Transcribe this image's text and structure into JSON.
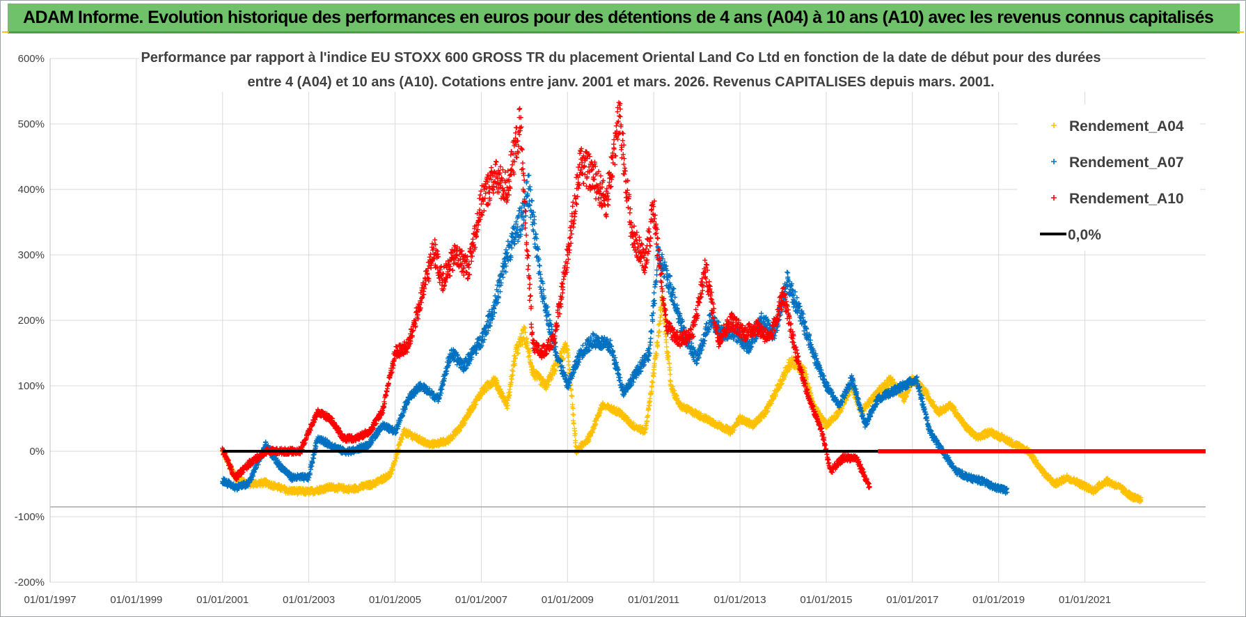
{
  "banner": {
    "title": "ADAM Informe. Evolution historique des performances en euros pour des détentions de 4 ans (A04) à 10 ans (A10) avec les revenus connus capitalisés"
  },
  "colors": {
    "banner": "#6fc26a",
    "a04": "#ffc000",
    "a07": "#0070c0",
    "a10": "#ff0000",
    "zero": "#000000",
    "grid": "#d9d9d9"
  },
  "chart_data": {
    "type": "scatter",
    "title_lines": [
      "Performance par rapport à l'indice EU STOXX 600 GROSS TR  du placement Oriental Land Co Ltd en fonction de la date de début pour des durées",
      "entre 4 (A04) et 10 ans (A10).  Cotations entre janv. 2001 et mars. 2026.  Revenus CAPITALISES depuis mars. 2001."
    ],
    "xlabel": "",
    "ylabel": "",
    "x_range": [
      1997.0,
      2023.8
    ],
    "ylim": [
      -200,
      600
    ],
    "y_ticks": [
      -200,
      -100,
      0,
      100,
      200,
      300,
      400,
      500,
      600
    ],
    "y_tick_labels": [
      "-200%",
      "-100%",
      "0%",
      "100%",
      "200%",
      "300%",
      "400%",
      "500%",
      "600%"
    ],
    "x_ticks": [
      1997,
      1999,
      2001,
      2003,
      2005,
      2007,
      2009,
      2011,
      2013,
      2015,
      2017,
      2019,
      2021
    ],
    "x_tick_labels": [
      "01/01/1997",
      "01/01/1999",
      "01/01/2001",
      "01/01/2003",
      "01/01/2005",
      "01/01/2007",
      "01/01/2009",
      "01/01/2011",
      "01/01/2013",
      "01/01/2015",
      "01/01/2017",
      "01/01/2019",
      "01/01/2021"
    ],
    "grid": true,
    "legend_position": "top-right",
    "series": [
      {
        "name": "Rendement_A04",
        "marker": "+",
        "color": "#ffc000",
        "x": [
          2001.0,
          2001.3,
          2001.6,
          2002.0,
          2002.5,
          2003.0,
          2003.5,
          2004.0,
          2004.5,
          2004.9,
          2005.2,
          2005.5,
          2005.8,
          2006.2,
          2006.5,
          2007.0,
          2007.3,
          2007.6,
          2007.8,
          2008.0,
          2008.2,
          2008.5,
          2008.8,
          2009.0,
          2009.2,
          2009.5,
          2009.8,
          2010.2,
          2010.5,
          2010.8,
          2011.0,
          2011.2,
          2011.4,
          2011.6,
          2011.9,
          2012.2,
          2012.5,
          2012.8,
          2013.0,
          2013.3,
          2013.6,
          2013.9,
          2014.2,
          2014.5,
          2014.7,
          2015.0,
          2015.3,
          2015.6,
          2015.8,
          2016.2,
          2016.5,
          2016.8,
          2017.0,
          2017.3,
          2017.6,
          2017.9,
          2018.2,
          2018.5,
          2018.8,
          2019.1,
          2019.4,
          2019.7,
          2020.0,
          2020.3,
          2020.6,
          2020.9,
          2021.2,
          2021.5,
          2021.8,
          2022.1,
          2022.3
        ],
        "values": [
          0,
          -40,
          -50,
          -48,
          -60,
          -62,
          -55,
          -58,
          -50,
          -35,
          30,
          20,
          10,
          15,
          35,
          90,
          110,
          70,
          150,
          180,
          120,
          100,
          140,
          160,
          0,
          20,
          70,
          60,
          40,
          30,
          120,
          230,
          100,
          70,
          60,
          50,
          40,
          30,
          50,
          40,
          60,
          100,
          140,
          120,
          70,
          40,
          60,
          100,
          60,
          90,
          110,
          80,
          110,
          90,
          60,
          70,
          40,
          20,
          30,
          20,
          10,
          0,
          -30,
          -50,
          -40,
          -50,
          -60,
          -45,
          -55,
          -70,
          -75
        ]
      },
      {
        "name": "Rendement_A07",
        "marker": "+",
        "color": "#0070c0",
        "x": [
          2001.0,
          2001.3,
          2001.6,
          2002.0,
          2002.3,
          2002.6,
          2003.0,
          2003.2,
          2003.5,
          2003.8,
          2004.0,
          2004.4,
          2004.7,
          2005.0,
          2005.3,
          2005.6,
          2006.0,
          2006.3,
          2006.6,
          2007.0,
          2007.3,
          2007.6,
          2007.9,
          2008.1,
          2008.4,
          2008.7,
          2009.0,
          2009.3,
          2009.6,
          2010.0,
          2010.3,
          2010.6,
          2010.9,
          2011.1,
          2011.4,
          2011.7,
          2012.0,
          2012.3,
          2012.6,
          2012.9,
          2013.2,
          2013.5,
          2013.8,
          2014.1,
          2014.4,
          2014.7,
          2015.0,
          2015.3,
          2015.6,
          2015.9,
          2016.2,
          2016.5,
          2016.8,
          2017.1,
          2017.4,
          2017.7,
          2018.0,
          2018.3,
          2018.6,
          2018.9,
          2019.2
        ],
        "values": [
          -45,
          -55,
          -50,
          10,
          -20,
          -40,
          -40,
          20,
          10,
          0,
          0,
          10,
          40,
          30,
          80,
          100,
          80,
          150,
          130,
          170,
          220,
          300,
          350,
          400,
          250,
          160,
          100,
          150,
          170,
          160,
          90,
          120,
          150,
          300,
          250,
          180,
          140,
          200,
          180,
          180,
          160,
          200,
          180,
          260,
          210,
          150,
          100,
          70,
          110,
          40,
          80,
          90,
          100,
          110,
          30,
          0,
          -30,
          -40,
          -45,
          -55,
          -60
        ]
      },
      {
        "name": "Rendement_A10",
        "marker": "+",
        "color": "#ff0000",
        "x": [
          2001.0,
          2001.3,
          2001.6,
          2002.0,
          2002.4,
          2002.8,
          2003.2,
          2003.5,
          2003.8,
          2004.1,
          2004.4,
          2004.7,
          2005.0,
          2005.3,
          2005.6,
          2005.9,
          2006.1,
          2006.4,
          2006.7,
          2007.0,
          2007.3,
          2007.6,
          2007.9,
          2008.2,
          2008.4,
          2008.7,
          2009.0,
          2009.3,
          2009.6,
          2009.9,
          2010.2,
          2010.5,
          2010.8,
          2011.0,
          2011.3,
          2011.6,
          2011.9,
          2012.2,
          2012.5,
          2012.8,
          2013.1,
          2013.4,
          2013.7,
          2014.0,
          2014.3,
          2014.6,
          2014.9,
          2015.1,
          2015.4,
          2015.7,
          2016.0
        ],
        "values": [
          0,
          -40,
          -20,
          0,
          0,
          0,
          60,
          50,
          20,
          20,
          30,
          60,
          150,
          160,
          230,
          310,
          260,
          300,
          280,
          380,
          420,
          400,
          500,
          160,
          150,
          170,
          300,
          440,
          420,
          380,
          510,
          330,
          290,
          370,
          190,
          170,
          180,
          280,
          170,
          200,
          180,
          190,
          170,
          240,
          150,
          80,
          30,
          -30,
          -10,
          -10,
          -55
        ]
      },
      {
        "name": "Rendement_A10 (0 %)",
        "marker": "dense",
        "color": "#ff0000",
        "x": [
          2016.2,
          2023.8
        ],
        "values": [
          0,
          0
        ]
      },
      {
        "name": "0,0%",
        "marker": "line",
        "color": "#000000",
        "x": [
          2001.0,
          2016.2
        ],
        "values": [
          0,
          0
        ]
      }
    ],
    "legend": [
      {
        "label": "Rendement_A04",
        "symbol": "+",
        "color": "#ffc000"
      },
      {
        "label": "Rendement_A07",
        "symbol": "+",
        "color": "#0070c0"
      },
      {
        "label": "Rendement_A10",
        "symbol": "+",
        "color": "#ff0000"
      },
      {
        "label": "0,0%",
        "symbol": "line",
        "color": "#000000"
      }
    ]
  }
}
